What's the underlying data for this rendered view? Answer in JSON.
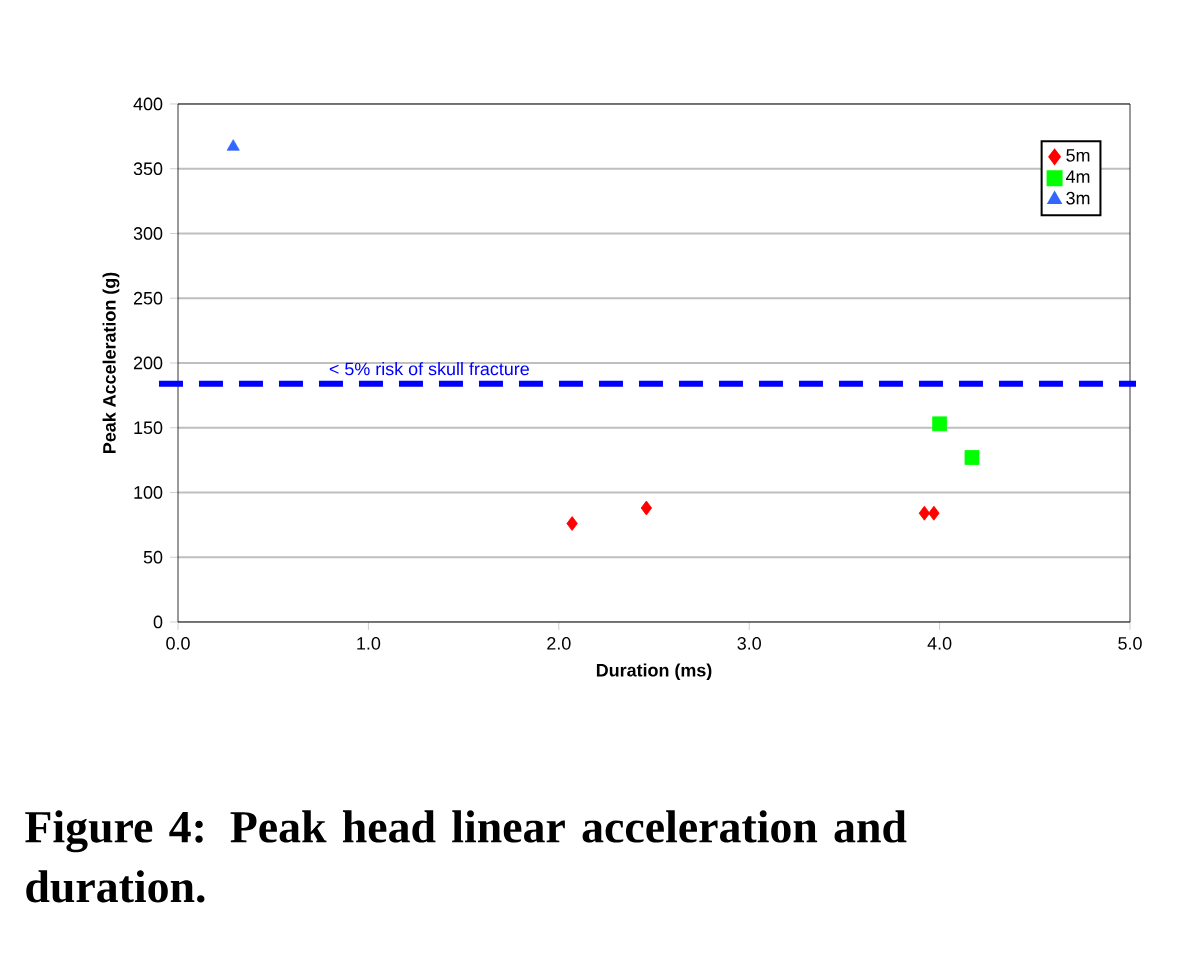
{
  "chart_data": {
    "type": "scatter",
    "xlabel": "Duration (ms)",
    "ylabel": "Peak Acceleration (g)",
    "xlim": [
      0,
      5
    ],
    "xticks": [
      {
        "value": 0,
        "label": "0.0"
      },
      {
        "value": 1,
        "label": "1.0"
      },
      {
        "value": 2,
        "label": "2.0"
      },
      {
        "value": 3,
        "label": "3.0"
      },
      {
        "value": 4,
        "label": "4.0"
      },
      {
        "value": 5,
        "label": "5.0"
      }
    ],
    "ylim": [
      0,
      400
    ],
    "yticks": [
      0,
      50,
      100,
      150,
      200,
      250,
      300,
      350,
      400
    ],
    "grid": "y",
    "legend": "top right",
    "series": [
      {
        "name": "5m",
        "color": "#ff0000",
        "marker": "diamond",
        "x": [
          2.07,
          2.46,
          3.92,
          3.97
        ],
        "values": [
          76,
          88,
          84,
          84
        ]
      },
      {
        "name": "4m",
        "color": "#00ff00",
        "marker": "square",
        "x": [
          4.0,
          4.17
        ],
        "values": [
          153,
          127
        ]
      },
      {
        "name": "3m",
        "color": "#3366ff",
        "marker": "triangle",
        "x": [
          0.29
        ],
        "values": [
          367
        ]
      }
    ],
    "ref_lines": [
      {
        "axis": "y",
        "value": 184,
        "label": "< 5% risk of skull fracture",
        "color": "#0000ff",
        "line_style": "dashed"
      }
    ],
    "annotations": [
      "**Figure 4: Peak head linear acceleration and duration.**"
    ]
  }
}
